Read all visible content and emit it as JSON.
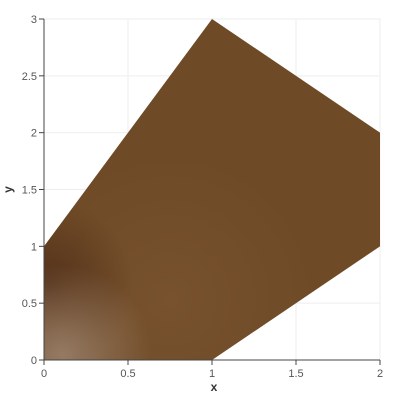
{
  "chart_data": {
    "type": "area",
    "xlabel": "x",
    "ylabel": "y",
    "xlim": [
      0,
      2
    ],
    "ylim": [
      0,
      3
    ],
    "x_ticks": [
      0,
      0.5,
      1,
      1.5,
      2
    ],
    "y_ticks": [
      0,
      0.5,
      1,
      1.5,
      2,
      2.5,
      3
    ],
    "x_tick_labels": [
      "0",
      "0.5",
      "1",
      "1.5",
      "2"
    ],
    "y_tick_labels": [
      "0",
      "0.5",
      "1",
      "1.5",
      "2",
      "2.5",
      "3"
    ],
    "grid": true,
    "region": {
      "vertices": [
        [
          0,
          0
        ],
        [
          1,
          0
        ],
        [
          2,
          1
        ],
        [
          2,
          2
        ],
        [
          1,
          3
        ],
        [
          0,
          1
        ]
      ],
      "fill_color": "#6e4a26",
      "shading": "radial, lighter near (0,0), darker near (0,0.7)"
    }
  },
  "colors": {
    "fill_base": "#6e4a26",
    "fill_light": "#8a6e55",
    "fill_dark": "#5e3a1e",
    "grid": "#eeeeee",
    "axis": "#444444"
  }
}
